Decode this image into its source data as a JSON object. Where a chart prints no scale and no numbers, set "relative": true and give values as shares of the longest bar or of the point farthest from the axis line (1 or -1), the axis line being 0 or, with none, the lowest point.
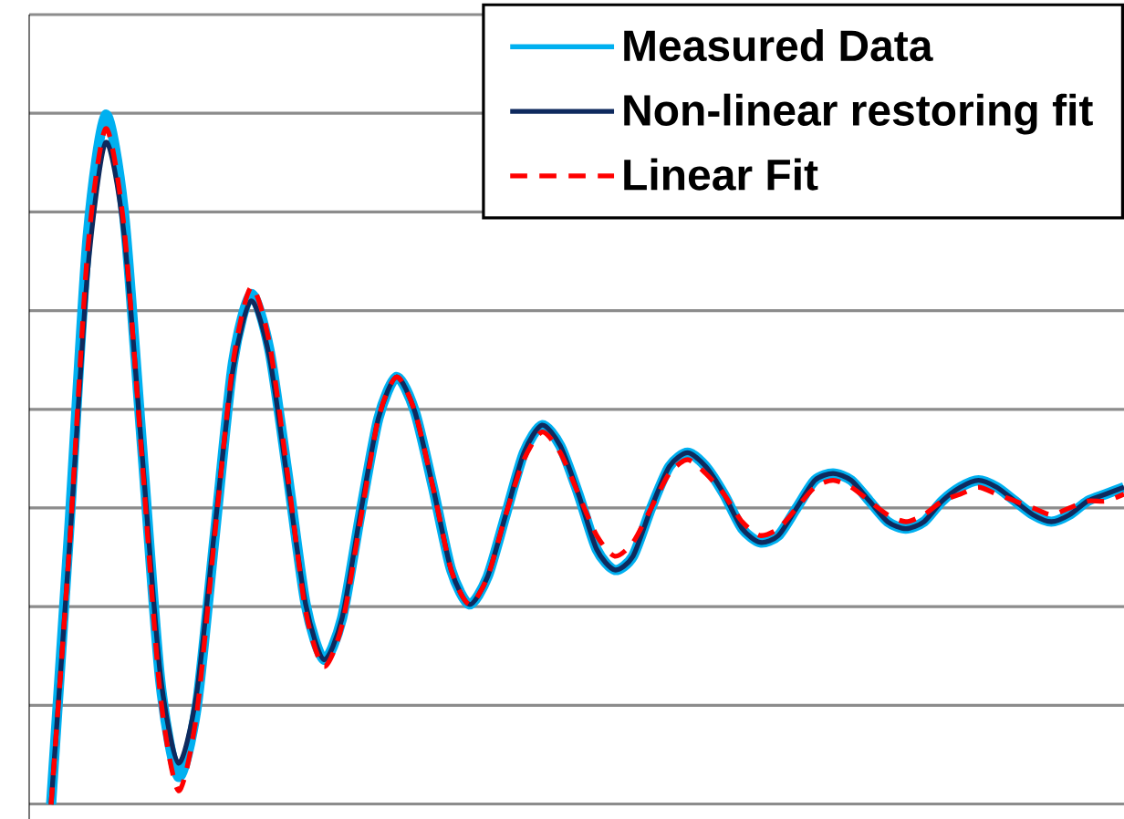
{
  "chart_data": {
    "type": "line",
    "relative": true,
    "grid": true,
    "legend": "top right",
    "categories": [
      null,
      null,
      null,
      null,
      null,
      null,
      null,
      null,
      null,
      null,
      null,
      null,
      null,
      null,
      null,
      null,
      null,
      null,
      null,
      null,
      null,
      null,
      null,
      null,
      null,
      null,
      null,
      null,
      null,
      null,
      null,
      null,
      null,
      null,
      null,
      null,
      null,
      null,
      null,
      null,
      null,
      null,
      null,
      null,
      null,
      null,
      null,
      null,
      null,
      null,
      null,
      null,
      null,
      null,
      null,
      null,
      null,
      null,
      null,
      null
    ],
    "series": [
      {
        "name": "Measured Data",
        "color": "#00b0f0",
        "line_style": "solid",
        "values": [
          0,
          0.4,
          0.82,
          1.0,
          0.86,
          0.52,
          0.18,
          0.04,
          0.14,
          0.39,
          0.64,
          0.74,
          0.66,
          0.48,
          0.29,
          0.21,
          0.27,
          0.42,
          0.56,
          0.62,
          0.57,
          0.46,
          0.34,
          0.29,
          0.33,
          0.42,
          0.51,
          0.55,
          0.52,
          0.45,
          0.37,
          0.34,
          0.36,
          0.43,
          0.49,
          0.51,
          0.49,
          0.45,
          0.4,
          0.38,
          0.39,
          0.43,
          0.47,
          0.48,
          0.47,
          0.44,
          0.41,
          0.4,
          0.41,
          0.44,
          0.46,
          0.47,
          0.46,
          0.44,
          0.42,
          0.41,
          0.42,
          0.44,
          0.45,
          0.46
        ]
      },
      {
        "name": "Non-linear restoring fit",
        "color": "#0e2a5e",
        "line_style": "solid",
        "values": [
          0,
          0.37,
          0.77,
          0.96,
          0.83,
          0.51,
          0.19,
          0.06,
          0.16,
          0.4,
          0.63,
          0.73,
          0.65,
          0.47,
          0.29,
          0.21,
          0.27,
          0.42,
          0.56,
          0.62,
          0.57,
          0.46,
          0.34,
          0.29,
          0.33,
          0.42,
          0.51,
          0.55,
          0.52,
          0.45,
          0.37,
          0.34,
          0.36,
          0.43,
          0.49,
          0.51,
          0.49,
          0.45,
          0.4,
          0.38,
          0.39,
          0.43,
          0.47,
          0.48,
          0.47,
          0.44,
          0.41,
          0.4,
          0.41,
          0.44,
          0.46,
          0.47,
          0.46,
          0.44,
          0.42,
          0.41,
          0.42,
          0.44,
          0.45,
          0.46
        ]
      },
      {
        "name": "Linear Fit",
        "color": "#ff0000",
        "line_style": "dashed",
        "values": [
          0,
          0.37,
          0.8,
          0.98,
          0.84,
          0.5,
          0.16,
          0.02,
          0.13,
          0.39,
          0.64,
          0.75,
          0.67,
          0.48,
          0.28,
          0.2,
          0.26,
          0.41,
          0.56,
          0.62,
          0.57,
          0.46,
          0.34,
          0.29,
          0.33,
          0.42,
          0.5,
          0.54,
          0.51,
          0.45,
          0.39,
          0.36,
          0.38,
          0.43,
          0.48,
          0.5,
          0.48,
          0.45,
          0.41,
          0.39,
          0.4,
          0.43,
          0.46,
          0.47,
          0.46,
          0.44,
          0.42,
          0.41,
          0.42,
          0.44,
          0.45,
          0.46,
          0.45,
          0.44,
          0.43,
          0.42,
          0.43,
          0.44,
          0.44,
          0.45
        ]
      }
    ]
  }
}
